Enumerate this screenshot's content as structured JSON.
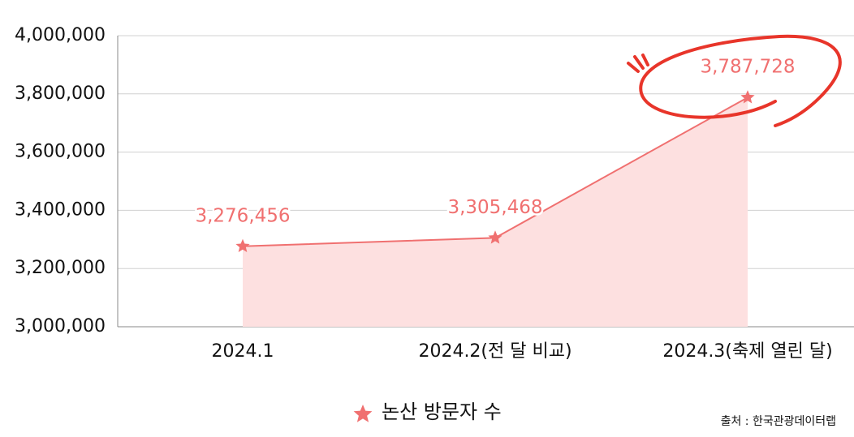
{
  "chart_data": {
    "type": "area-line",
    "categories": [
      "2024.1",
      "2024.2(전 달 비교)",
      "2024.3(축제 열린 달)"
    ],
    "series": [
      {
        "name": "논산 방문자 수",
        "color": "#f07070",
        "values": [
          3276456,
          3305468,
          3787728
        ],
        "value_labels": [
          "3,276,456",
          "3,305,468",
          "3,787,728"
        ]
      }
    ],
    "ylim": [
      3000000,
      4000000
    ],
    "yticks": [
      {
        "value": 3000000,
        "label": "3,000,000"
      },
      {
        "value": 3200000,
        "label": "3,200,000"
      },
      {
        "value": 3400000,
        "label": "3,400,000"
      },
      {
        "value": 3600000,
        "label": "3,600,000"
      },
      {
        "value": 3800000,
        "label": "3,800,000"
      },
      {
        "value": 4000000,
        "label": "4,000,000"
      }
    ],
    "grid": true,
    "area_color": "#fde0e0",
    "source": "출처 : 한국관광데이터랩"
  }
}
